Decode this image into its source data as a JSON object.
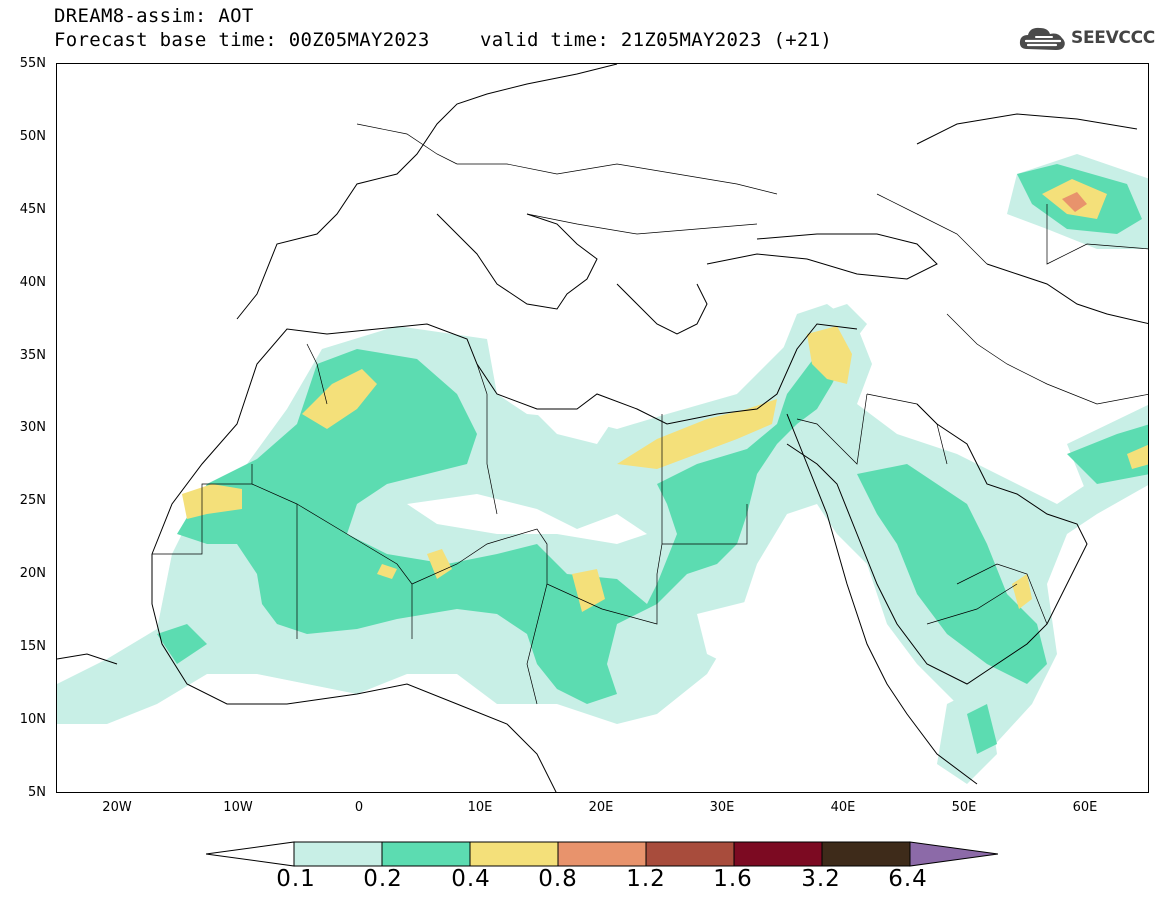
{
  "header": {
    "title": "DREAM8-assim: AOT",
    "base_time": "Forecast base time: 00Z05MAY2023",
    "valid_time": "valid time: 21Z05MAY2023 (+21)",
    "logo_text": "SEEVCCC"
  },
  "map": {
    "projection": "lat-lon",
    "lon_range": [
      -25,
      65
    ],
    "lat_range": [
      5,
      55
    ],
    "lat_labels": [
      "55N",
      "50N",
      "45N",
      "40N",
      "35N",
      "30N",
      "25N",
      "20N",
      "15N",
      "10N",
      "5N"
    ],
    "lon_labels": [
      "20W",
      "10W",
      "0",
      "10E",
      "20E",
      "30E",
      "40E",
      "50E",
      "60E"
    ],
    "field": "Aerosol optical thickness"
  },
  "colorbar": {
    "levels": [
      "0.1",
      "0.2",
      "0.4",
      "0.8",
      "1.2",
      "1.6",
      "3.2",
      "6.4"
    ],
    "colors": [
      "#ffffff",
      "#c8efe6",
      "#5cdcb1",
      "#f4e07a",
      "#e8936c",
      "#a84c3c",
      "#7c0a22",
      "#3e2b1a",
      "#8c6aa8"
    ]
  }
}
